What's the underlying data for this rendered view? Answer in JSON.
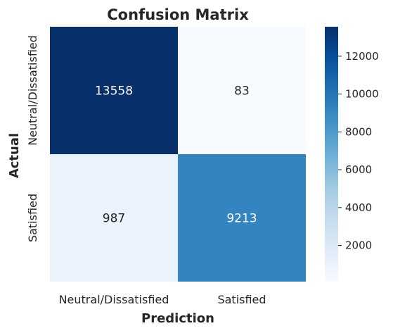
{
  "chart_data": {
    "type": "heatmap",
    "title": "Confusion Matrix",
    "xlabel": "Prediction",
    "ylabel": "Actual",
    "x_categories": [
      "Neutral/Dissatisfied",
      "Satisfied"
    ],
    "y_categories": [
      "Neutral/Dissatisfied",
      "Satisfied"
    ],
    "values": [
      [
        13558,
        83
      ],
      [
        987,
        9213
      ]
    ],
    "colormap": "Blues",
    "colorbar": {
      "range": [
        83,
        13558
      ],
      "ticks": [
        2000,
        4000,
        6000,
        8000,
        10000,
        12000
      ]
    },
    "grid": false
  }
}
